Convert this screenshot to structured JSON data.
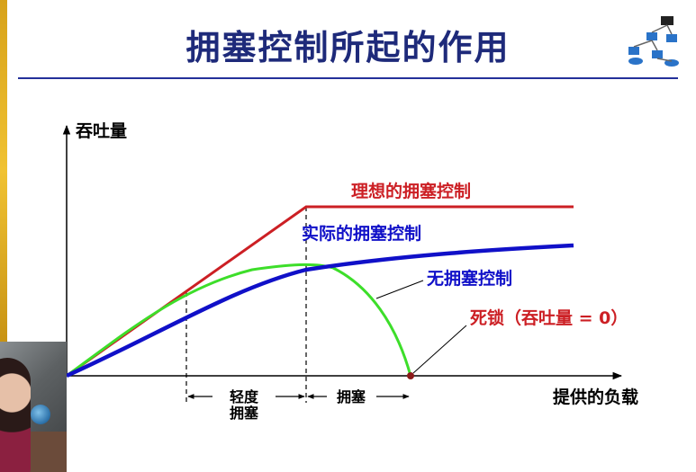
{
  "title": "拥塞控制所起的作用",
  "axes": {
    "y_label": "吞吐量",
    "x_label": "提供的负载"
  },
  "curves": {
    "ideal": {
      "label": "理想的拥塞控制",
      "color": "#cc1f24"
    },
    "actual": {
      "label": "实际的拥塞控制",
      "color": "#1010c8"
    },
    "none": {
      "label": "无拥塞控制",
      "color": "#3dde2a"
    }
  },
  "deadlock": {
    "label": "死锁（吞吐量 = 0）",
    "color": "#cc1f24"
  },
  "regions": {
    "light": {
      "label_line1": "轻度",
      "label_line2": "拥塞"
    },
    "congestion": {
      "label": "拥塞"
    }
  },
  "colors": {
    "title": "#1e2a7a",
    "axis": "#000000"
  }
}
